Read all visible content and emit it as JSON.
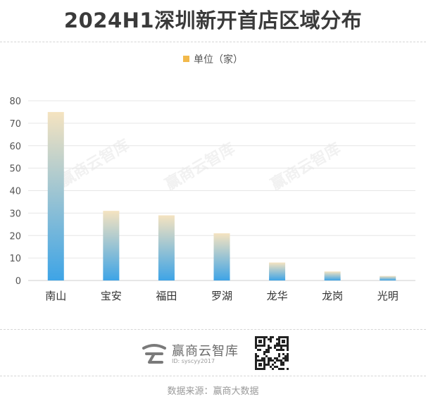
{
  "title": "2024H1深圳新开首店区域分布",
  "legend_label": "单位（家）",
  "colors": {
    "bar_top": "#f5e3c0",
    "bar_bottom": "#3ea4e6",
    "legend_swatch": "#f2b94b"
  },
  "watermark": "赢商云智库",
  "brand": {
    "name": "赢商云智库",
    "id_text": "ID: syscyy2017"
  },
  "source": "数据来源：赢商大数据",
  "chart_data": {
    "type": "bar",
    "categories": [
      "南山",
      "宝安",
      "福田",
      "罗湖",
      "龙华",
      "龙岗",
      "光明"
    ],
    "values": [
      75,
      31,
      29,
      21,
      8,
      4,
      2
    ],
    "series": [
      {
        "name": "单位（家）",
        "values": [
          75,
          31,
          29,
          21,
          8,
          4,
          2
        ]
      }
    ],
    "ylim": [
      0,
      80
    ],
    "yticks": [
      0,
      10,
      20,
      30,
      40,
      50,
      60,
      70,
      80
    ],
    "grid": true,
    "legend_position": "top-center"
  }
}
